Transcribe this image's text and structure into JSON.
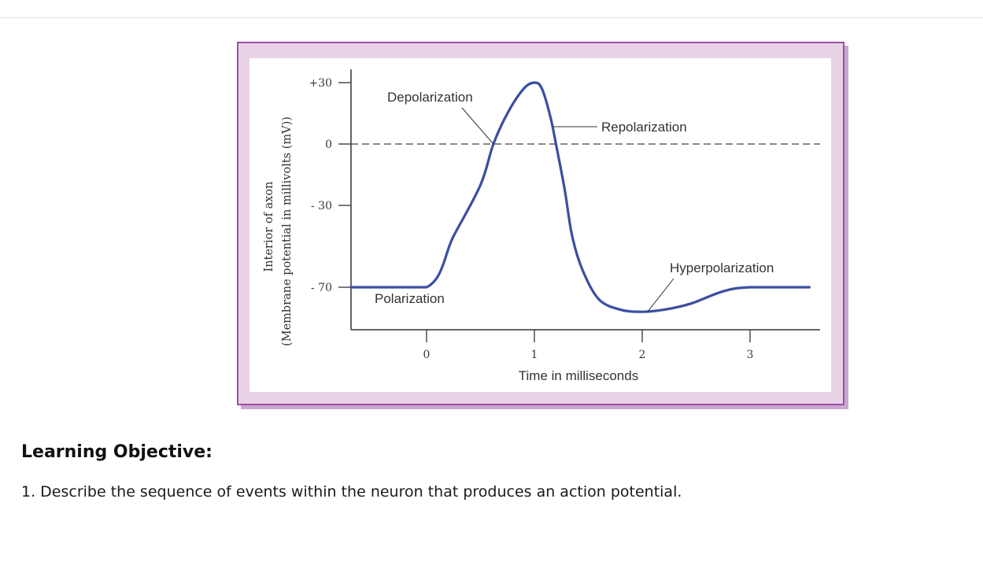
{
  "chart_data": {
    "type": "line",
    "title": "",
    "xlabel": "Time in milliseconds",
    "ylabel_line1": "Interior of axon",
    "ylabel_line2": "(Membrane potential in millivolts (mV))",
    "xlim": [
      -0.7,
      3.65
    ],
    "ylim": [
      -90,
      35
    ],
    "x_ticks": [
      {
        "value": 0,
        "label": "0"
      },
      {
        "value": 1,
        "label": "1"
      },
      {
        "value": 2,
        "label": "2"
      },
      {
        "value": 3,
        "label": "3"
      }
    ],
    "y_ticks": [
      {
        "value": 30,
        "label": "+30"
      },
      {
        "value": 0,
        "label": "0"
      },
      {
        "value": -30,
        "label": "- 30"
      },
      {
        "value": -70,
        "label": "- 70"
      }
    ],
    "reference_line": {
      "y": 0,
      "style": "dashed"
    },
    "series": [
      {
        "name": "membrane potential",
        "color": "#3a4fa0",
        "points": [
          [
            -0.7,
            -70
          ],
          [
            0,
            -70
          ],
          [
            0.25,
            -45
          ],
          [
            0.5,
            -20
          ],
          [
            0.62,
            0
          ],
          [
            0.75,
            15
          ],
          [
            0.9,
            27
          ],
          [
            1.0,
            30
          ],
          [
            1.07,
            27
          ],
          [
            1.15,
            13
          ],
          [
            1.2,
            0
          ],
          [
            1.28,
            -22
          ],
          [
            1.35,
            -45
          ],
          [
            1.45,
            -62
          ],
          [
            1.6,
            -76
          ],
          [
            1.8,
            -81
          ],
          [
            2.0,
            -82
          ],
          [
            2.2,
            -81
          ],
          [
            2.45,
            -78
          ],
          [
            2.75,
            -72
          ],
          [
            3.0,
            -70
          ],
          [
            3.55,
            -70
          ]
        ]
      }
    ],
    "annotations": [
      {
        "text": "Depolarization",
        "point": [
          0.62,
          0
        ]
      },
      {
        "text": "Repolarization",
        "point": [
          1.2,
          9
        ]
      },
      {
        "text": "Hyperpolarization",
        "point": [
          2.05,
          -82
        ]
      },
      {
        "text": "Polarization",
        "point": [
          0,
          -70
        ]
      }
    ]
  },
  "objective": {
    "heading": "Learning Objective:",
    "item": "1. Describe the sequence of events within the neuron that produces an action potential."
  }
}
